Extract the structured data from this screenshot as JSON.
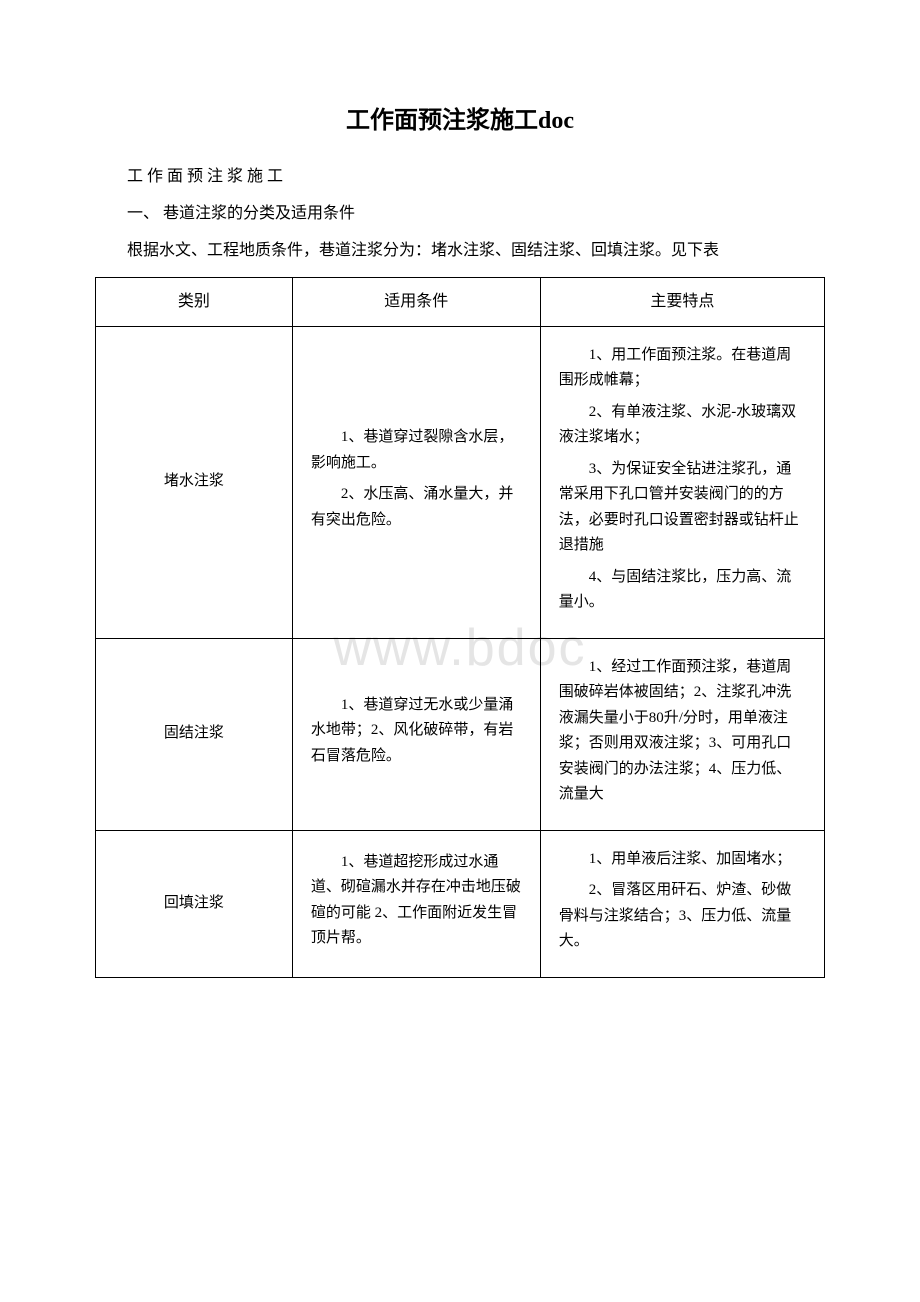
{
  "title": "工作面预注浆施工doc",
  "line1": "工 作 面 预 注 浆 施 工",
  "line2": "一、 巷道注浆的分类及适用条件",
  "line3": "根据水文、工程地质条件，巷道注浆分为：堵水注浆、固结注浆、回填注浆。见下表",
  "watermark": "www.bdoc",
  "table": {
    "header": {
      "c1": "类别",
      "c2": "适用条件",
      "c3": "主要特点"
    },
    "rows": [
      {
        "cat": "堵水注浆",
        "cond": [
          "1、巷道穿过裂隙含水层，影响施工。",
          "2、水压高、涌水量大，并有突出危险。"
        ],
        "feat": [
          "1、用工作面预注浆。在巷道周围形成帷幕；",
          "2、有单液注浆、水泥-水玻璃双液注浆堵水；",
          "3、为保证安全钻进注浆孔，通常采用下孔口管并安装阀门的的方法，必要时孔口设置密封器或钻杆止退措施",
          "4、与固结注浆比，压力高、流量小。"
        ]
      },
      {
        "cat": "固结注浆",
        "cond": [
          "1、巷道穿过无水或少量涌水地带；2、风化破碎带，有岩石冒落危险。"
        ],
        "feat": [
          "1、经过工作面预注浆，巷道周围破碎岩体被固结；2、注浆孔冲洗液漏失量小于80升/分时，用单液注浆；否则用双液注浆；3、可用孔口安装阀门的办法注浆；4、压力低、流量大"
        ]
      },
      {
        "cat": "回填注浆",
        "cond": [
          "1、巷道超挖形成过水通道、砌碹漏水并存在冲击地压破碹的可能 2、工作面附近发生冒顶片帮。"
        ],
        "feat": [
          "1、用单液后注浆、加固堵水；",
          "2、冒落区用矸石、炉渣、砂做骨料与注浆结合；3、压力低、流量大。"
        ]
      }
    ]
  }
}
